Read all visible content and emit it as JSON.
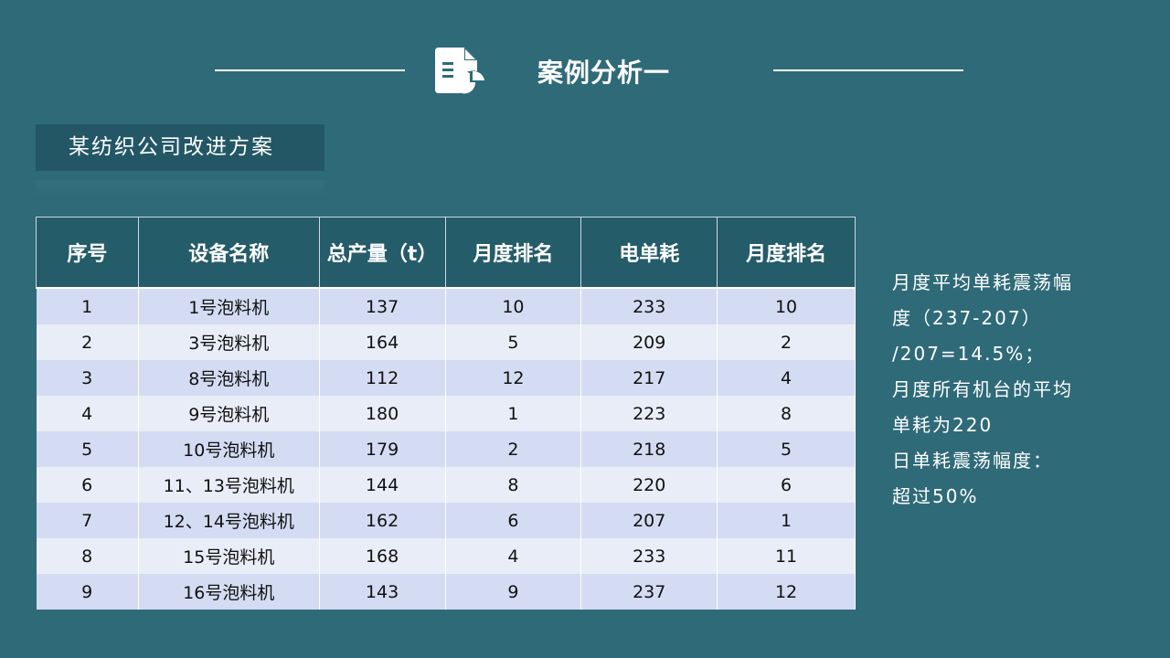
{
  "header": {
    "title": "案例分析一",
    "icon": "document-chart-icon"
  },
  "subtitle": "某纺织公司改进方案",
  "table": {
    "columns": [
      "序号",
      "设备名称",
      "总产量（t）",
      "月度排名",
      "电单耗",
      "月度排名"
    ],
    "rows": [
      [
        "1",
        "1号泡料机",
        "137",
        "10",
        "233",
        "10"
      ],
      [
        "2",
        "3号泡料机",
        "164",
        "5",
        "209",
        "2"
      ],
      [
        "3",
        "8号泡料机",
        "112",
        "12",
        "217",
        "4"
      ],
      [
        "4",
        "9号泡料机",
        "180",
        "1",
        "223",
        "8"
      ],
      [
        "5",
        "10号泡料机",
        "179",
        "2",
        "218",
        "5"
      ],
      [
        "6",
        "11、13号泡料机",
        "144",
        "8",
        "220",
        "6"
      ],
      [
        "7",
        "12、14号泡料机",
        "162",
        "6",
        "207",
        "1"
      ],
      [
        "8",
        "15号泡料机",
        "168",
        "4",
        "233",
        "11"
      ],
      [
        "9",
        "16号泡料机",
        "143",
        "9",
        "237",
        "12"
      ]
    ]
  },
  "notes": [
    "月度平均单耗震荡幅",
    "度（237-207）",
    "/207=14.5%；",
    "月度所有机台的平均",
    "单耗为220",
    "日单耗震荡幅度：",
    "超过50%"
  ]
}
